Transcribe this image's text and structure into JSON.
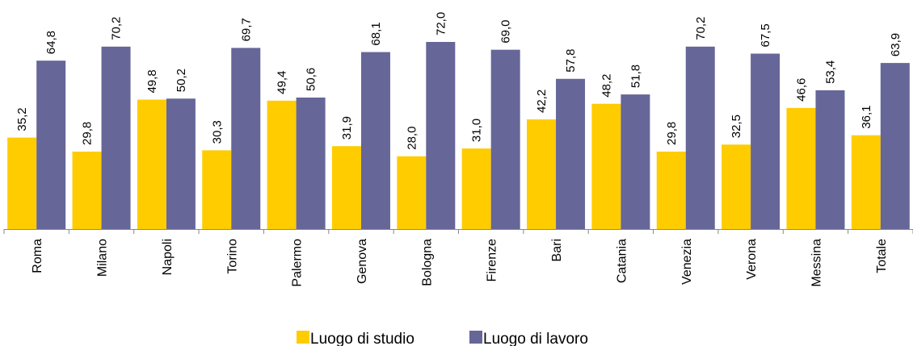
{
  "chart_data": {
    "type": "bar",
    "categories": [
      "Roma",
      "Milano",
      "Napoli",
      "Torino",
      "Palermo",
      "Genova",
      "Bologna",
      "Firenze",
      "Bari",
      "Catania",
      "Venezia",
      "Verona",
      "Messina",
      "Totale"
    ],
    "series": [
      {
        "name": "Luogo di studio",
        "color": "#FFCC00",
        "values": [
          35.2,
          29.8,
          49.8,
          30.3,
          49.4,
          31.9,
          28.0,
          31.0,
          42.2,
          48.2,
          29.8,
          32.5,
          46.6,
          36.1
        ],
        "labels": [
          "35,2",
          "29,8",
          "49,8",
          "30,3",
          "49,4",
          "31,9",
          "28,0",
          "31,0",
          "42,2",
          "48,2",
          "29,8",
          "32,5",
          "46,6",
          "36,1"
        ]
      },
      {
        "name": "Luogo di lavoro",
        "color": "#666699",
        "values": [
          64.8,
          70.2,
          50.2,
          69.7,
          50.6,
          68.1,
          72.0,
          69.0,
          57.8,
          51.8,
          70.2,
          67.5,
          53.4,
          63.9
        ],
        "labels": [
          "64,8",
          "70,2",
          "50,2",
          "69,7",
          "50,6",
          "68,1",
          "72,0",
          "69,0",
          "57,8",
          "51,8",
          "70,2",
          "67,5",
          "53,4",
          "63,9"
        ]
      }
    ],
    "ylim": [
      0,
      80
    ],
    "grid": false,
    "legend_position": "bottom-center"
  }
}
